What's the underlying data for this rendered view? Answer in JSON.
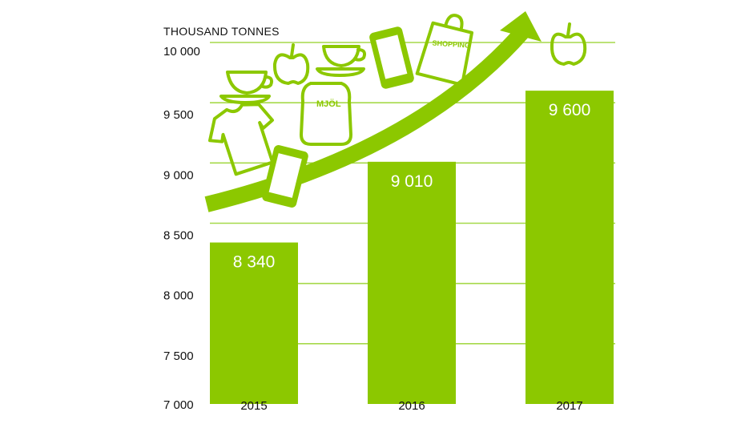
{
  "chart_data": {
    "type": "bar",
    "unit_label": "THOUSAND TONNES",
    "categories": [
      "2015",
      "2016",
      "2017"
    ],
    "values": [
      8340,
      9010,
      9600
    ],
    "value_labels": [
      "8 340",
      "9 010",
      "9 600"
    ],
    "y_ticks": [
      {
        "value": 7000,
        "label": "7 000"
      },
      {
        "value": 7500,
        "label": "7 500"
      },
      {
        "value": 8000,
        "label": "8 000"
      },
      {
        "value": 8500,
        "label": "8 500"
      },
      {
        "value": 9000,
        "label": "9 000"
      },
      {
        "value": 9500,
        "label": "9 500"
      },
      {
        "value": 10000,
        "label": "10 000"
      }
    ],
    "ylim": [
      7000,
      10100
    ],
    "grid": true,
    "colors": {
      "bar": "#8cc800",
      "grid": "#a6d94a",
      "icons": "#8cc800"
    }
  },
  "illustration": {
    "flour_bag_label": "MJÖL",
    "shopping_bag_label": "SHOPPING",
    "icons": [
      "coffee-cup-icon",
      "apple-icon",
      "tshirt-icon",
      "mobile-phone-icon",
      "flour-bag-icon",
      "shopping-bag-icon",
      "rising-arrow-icon"
    ]
  }
}
